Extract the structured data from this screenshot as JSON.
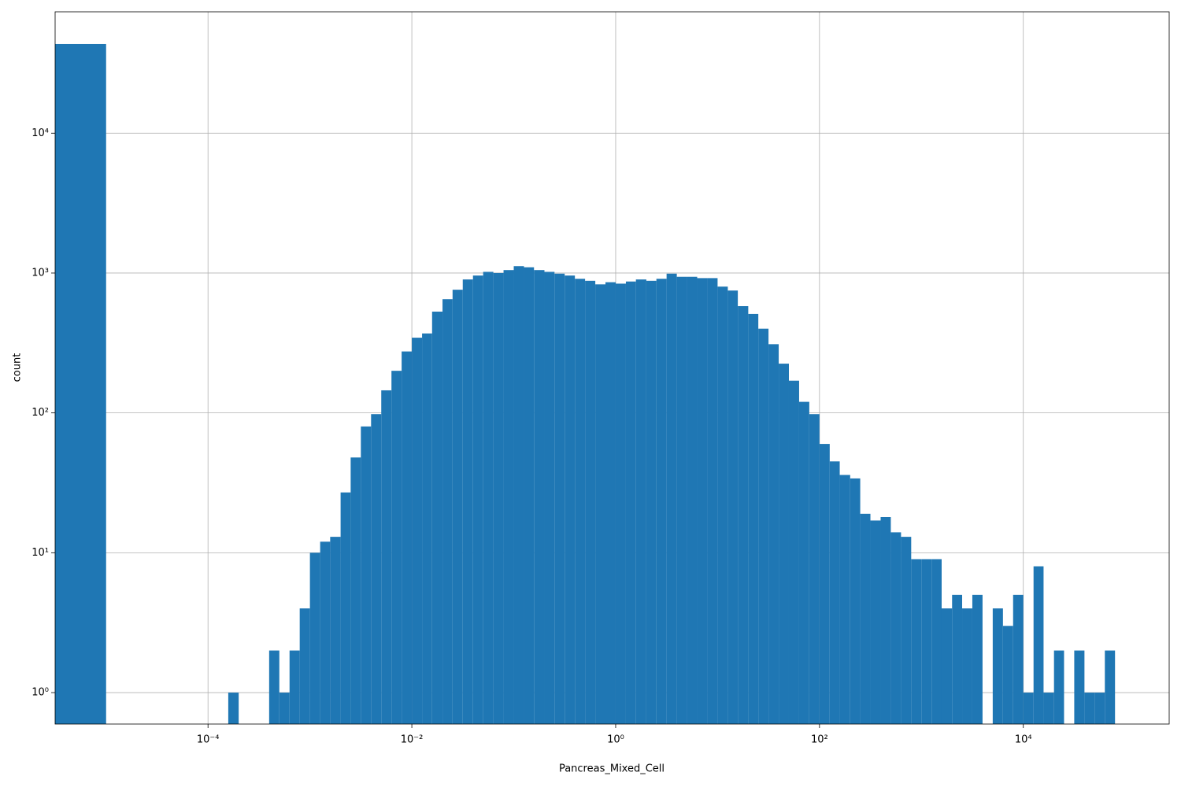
{
  "chart_data": {
    "type": "histogram",
    "xlabel": "Pancreas_Mixed_Cell",
    "ylabel": "count",
    "xscale": "log",
    "yscale": "log",
    "grid": true,
    "color": "#1f77b4",
    "xlim": [
      3.16e-06,
      270000
    ],
    "ylim": [
      0.596,
      73800
    ],
    "xticks": [
      {
        "value": 0.0001,
        "label": "10⁻⁴"
      },
      {
        "value": 0.01,
        "label": "10⁻²"
      },
      {
        "value": 1,
        "label": "10⁰"
      },
      {
        "value": 100,
        "label": "10²"
      },
      {
        "value": 10000,
        "label": "10⁴"
      }
    ],
    "yticks": [
      {
        "value": 1,
        "label": "10⁰"
      },
      {
        "value": 10,
        "label": "10¹"
      },
      {
        "value": 100,
        "label": "10²"
      },
      {
        "value": 1000,
        "label": "10³"
      },
      {
        "value": 10000,
        "label": "10⁴"
      }
    ],
    "bins": [
      1e-06,
      1e-05,
      1.26e-05,
      1.58e-05,
      2e-05,
      2.51e-05,
      3.16e-05,
      3.98e-05,
      5.01e-05,
      6.31e-05,
      7.94e-05,
      0.0001,
      0.000126,
      0.000158,
      0.0002,
      0.000251,
      0.000316,
      0.000398,
      0.000501,
      0.000631,
      0.000794,
      0.001,
      0.00126,
      0.00158,
      0.002,
      0.00251,
      0.00316,
      0.00398,
      0.00501,
      0.00631,
      0.00794,
      0.01,
      0.0126,
      0.0158,
      0.02,
      0.0251,
      0.0316,
      0.0398,
      0.0501,
      0.0631,
      0.0794,
      0.1,
      0.126,
      0.158,
      0.2,
      0.251,
      0.316,
      0.398,
      0.501,
      0.631,
      0.794,
      1,
      1.26,
      1.58,
      2,
      2.51,
      3.16,
      3.98,
      5.01,
      6.31,
      7.94,
      10,
      12.6,
      15.8,
      20,
      25.1,
      31.6,
      39.8,
      50.1,
      63.1,
      79.4,
      100,
      126,
      158,
      200,
      251,
      316,
      398,
      501,
      631,
      794,
      1000,
      1260,
      1580,
      2000,
      2510,
      3160,
      3980,
      5010,
      6310,
      7940,
      10000,
      12600,
      15800,
      20000,
      25100,
      31600,
      39800,
      50100,
      63100,
      79400
    ],
    "values": [
      43400,
      0,
      0,
      0,
      0,
      0,
      0,
      0,
      0,
      0,
      0,
      0,
      0,
      1,
      0,
      0,
      0,
      2,
      1,
      2,
      4,
      10,
      12,
      13,
      27,
      48,
      80,
      98,
      145,
      200,
      275,
      345,
      370,
      530,
      650,
      760,
      900,
      960,
      1020,
      1000,
      1050,
      1120,
      1100,
      1050,
      1020,
      990,
      960,
      910,
      880,
      830,
      860,
      840,
      870,
      900,
      880,
      910,
      990,
      940,
      940,
      920,
      920,
      800,
      750,
      580,
      510,
      400,
      310,
      225,
      170,
      120,
      98,
      60,
      45,
      36,
      34,
      19,
      17,
      18,
      14,
      13,
      9,
      9,
      9,
      4,
      5,
      4,
      5,
      0,
      4,
      3,
      5,
      1,
      8,
      1,
      2,
      0,
      2,
      1,
      1,
      2
    ]
  }
}
